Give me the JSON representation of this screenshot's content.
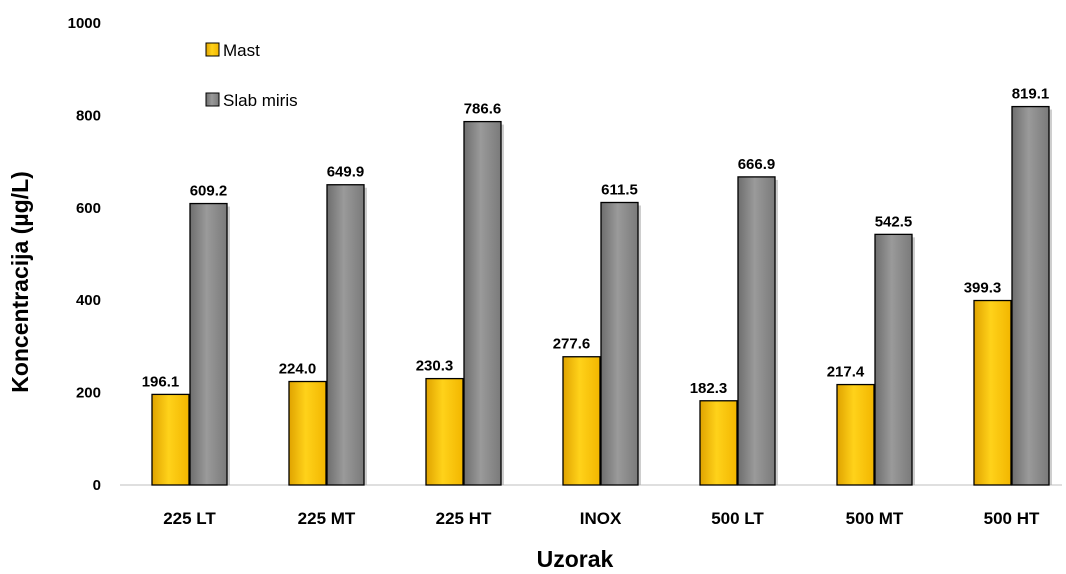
{
  "chart_data": {
    "type": "bar",
    "categories": [
      "225 LT",
      "225 MT",
      "225 HT",
      "INOX",
      "500 LT",
      "500 MT",
      "500 HT"
    ],
    "series": [
      {
        "name": "Mast",
        "values": [
          196.1,
          224.0,
          230.3,
          277.6,
          182.3,
          217.4,
          399.3
        ],
        "labels": [
          "196.1",
          "224.0",
          "230.3",
          "277.6",
          "182.3",
          "217.4",
          "399.3"
        ],
        "color": "#FFC000"
      },
      {
        "name": "Slab miris",
        "values": [
          609.2,
          649.9,
          786.6,
          611.5,
          666.9,
          542.5,
          819.1
        ],
        "labels": [
          "609.2",
          "649.9",
          "786.6",
          "611.5",
          "666.9",
          "542.5",
          "819.1"
        ],
        "color": "#808080"
      }
    ],
    "xlabel": "Uzorak",
    "ylabel": "Koncentracija (µg/L)",
    "ylim": [
      0,
      1000
    ],
    "yticks": [
      "0",
      "200",
      "400",
      "600",
      "800",
      "1000"
    ],
    "grid": false,
    "legend_position": "top-left"
  }
}
